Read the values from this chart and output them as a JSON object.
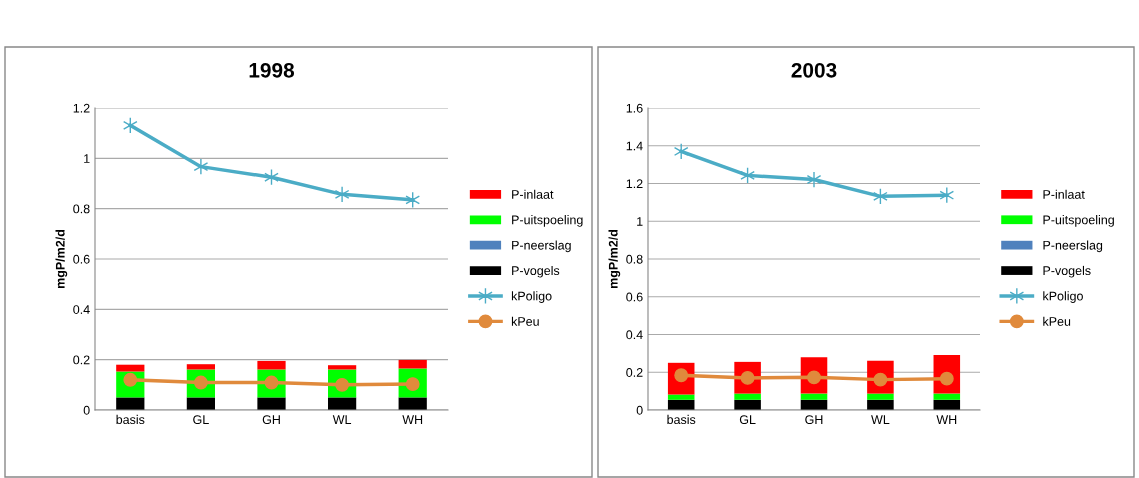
{
  "chart_data": [
    {
      "type": "bar",
      "title": "1998",
      "ylabel": "mgP/m2/d",
      "stacked": true,
      "categories": [
        "basis",
        "GL",
        "GH",
        "WL",
        "WH"
      ],
      "ylim": [
        0,
        1.2
      ],
      "yticks": [
        0,
        0.2,
        0.4,
        0.6,
        0.8,
        1,
        1.2
      ],
      "grid": "y",
      "legend": "right",
      "series": [
        {
          "name": "P-vogels",
          "color": "#000000",
          "values": [
            0.05,
            0.05,
            0.05,
            0.05,
            0.05
          ]
        },
        {
          "name": "P-neerslag",
          "color": "#4f81bd",
          "values": [
            null,
            null,
            null,
            null,
            null
          ]
        },
        {
          "name": "P-uitspoeling",
          "color": "#00ff00",
          "values": [
            0.103,
            0.111,
            0.111,
            0.111,
            0.115
          ]
        },
        {
          "name": "P-inlaat",
          "color": "#ff0000",
          "values": [
            0.027,
            0.021,
            0.034,
            0.017,
            0.034
          ]
        },
        {
          "name": "kPoligo",
          "type": "line",
          "marker": "cross",
          "color": "#4bacc6",
          "values": [
            1.131,
            0.967,
            0.925,
            0.857,
            0.835
          ]
        },
        {
          "name": "kPeu",
          "type": "line",
          "marker": "circle",
          "color": "#e08a3c",
          "values": [
            0.12,
            0.109,
            0.109,
            0.1,
            0.103
          ]
        }
      ]
    },
    {
      "type": "bar",
      "title": "2003",
      "ylabel": "mgP/m2/d",
      "stacked": true,
      "categories": [
        "basis",
        "GL",
        "GH",
        "WL",
        "WH"
      ],
      "ylim": [
        0,
        1.6
      ],
      "yticks": [
        0,
        0.2,
        0.4,
        0.6,
        0.8,
        1,
        1.2,
        1.4,
        1.6
      ],
      "grid": "y",
      "legend": "right",
      "series": [
        {
          "name": "P-vogels",
          "color": "#000000",
          "values": [
            0.054,
            0.054,
            0.054,
            0.054,
            0.054
          ]
        },
        {
          "name": "P-neerslag",
          "color": "#4f81bd",
          "values": [
            null,
            null,
            null,
            null,
            null
          ]
        },
        {
          "name": "P-uitspoeling",
          "color": "#00ff00",
          "values": [
            0.028,
            0.033,
            0.033,
            0.033,
            0.033
          ]
        },
        {
          "name": "P-inlaat",
          "color": "#ff0000",
          "values": [
            0.168,
            0.168,
            0.193,
            0.174,
            0.204
          ]
        },
        {
          "name": "kPoligo",
          "type": "line",
          "marker": "cross",
          "color": "#4bacc6",
          "values": [
            1.37,
            1.243,
            1.221,
            1.132,
            1.138
          ]
        },
        {
          "name": "kPeu",
          "type": "line",
          "marker": "circle",
          "color": "#e08a3c",
          "values": [
            0.184,
            0.17,
            0.173,
            0.161,
            0.166
          ]
        }
      ]
    }
  ]
}
